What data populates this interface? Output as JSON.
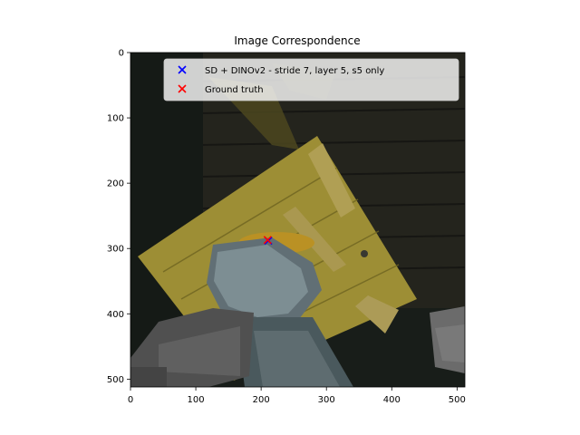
{
  "chart_data": {
    "type": "scatter",
    "title": "Image Correspondence",
    "xlabel": "",
    "ylabel": "",
    "xlim": [
      0,
      512
    ],
    "ylim": [
      512,
      0
    ],
    "xticks": [
      0,
      100,
      200,
      300,
      400,
      500
    ],
    "yticks": [
      0,
      100,
      200,
      300,
      400,
      500
    ],
    "legend_position": "top-right",
    "series": [
      {
        "name": "SD + DINOv2 - stride 7, layer 5, s5 only",
        "marker": "x",
        "color": "#0000ff",
        "points": [
          [
            211,
            288
          ]
        ]
      },
      {
        "name": "Ground truth",
        "marker": "x",
        "color": "#ff0000",
        "points": [
          [
            210,
            287
          ]
        ]
      }
    ],
    "background_image": "dark scene photo: yellow wooden board with hand and objects"
  }
}
